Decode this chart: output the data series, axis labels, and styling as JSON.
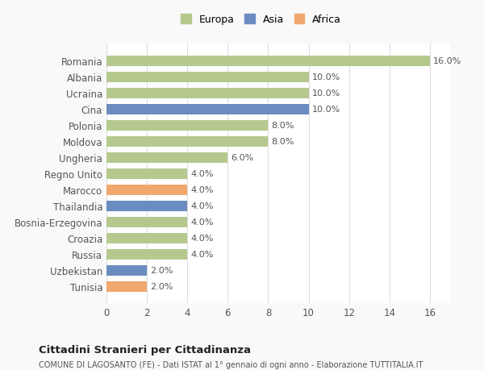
{
  "categories": [
    "Romania",
    "Albania",
    "Ucraina",
    "Cina",
    "Polonia",
    "Moldova",
    "Ungheria",
    "Regno Unito",
    "Marocco",
    "Thailandia",
    "Bosnia-Erzegovina",
    "Croazia",
    "Russia",
    "Uzbekistan",
    "Tunisia"
  ],
  "values": [
    16.0,
    10.0,
    10.0,
    10.0,
    8.0,
    8.0,
    6.0,
    4.0,
    4.0,
    4.0,
    4.0,
    4.0,
    4.0,
    2.0,
    2.0
  ],
  "continents": [
    "Europa",
    "Europa",
    "Europa",
    "Asia",
    "Europa",
    "Europa",
    "Europa",
    "Europa",
    "Africa",
    "Asia",
    "Europa",
    "Europa",
    "Europa",
    "Asia",
    "Africa"
  ],
  "continent_colors": {
    "Europa": "#b5c98e",
    "Asia": "#6b8cbf",
    "Africa": "#f0a86e"
  },
  "legend_items": [
    "Europa",
    "Asia",
    "Africa"
  ],
  "xlim": [
    0,
    17
  ],
  "xticks": [
    0,
    2,
    4,
    6,
    8,
    10,
    12,
    14,
    16
  ],
  "title_main": "Cittadini Stranieri per Cittadinanza",
  "title_sub": "COMUNE DI LAGOSANTO (FE) - Dati ISTAT al 1° gennaio di ogni anno - Elaborazione TUTTITALIA.IT",
  "bg_color": "#f9f9f9",
  "plot_bg_color": "#ffffff",
  "grid_color": "#dddddd"
}
